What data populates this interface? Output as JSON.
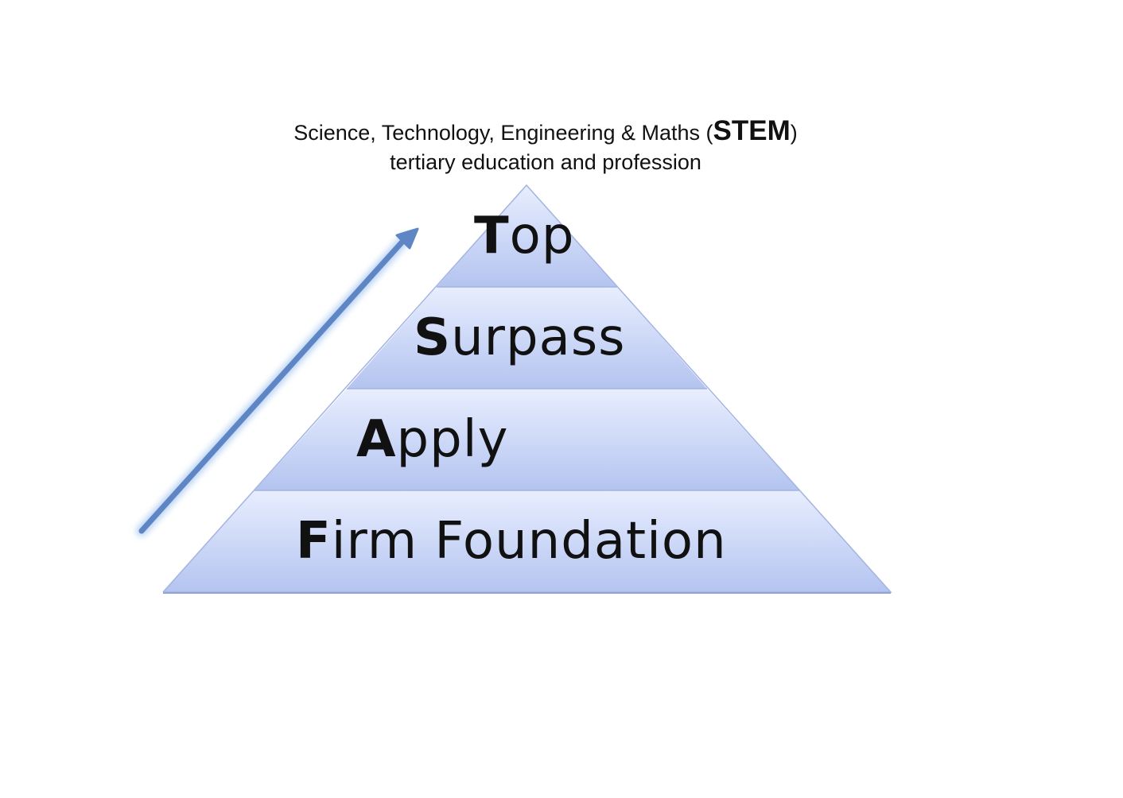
{
  "heading": {
    "line1_pre": "Science, Technology, Engineering & Maths (",
    "line1_bold": "STEM",
    "line1_post": ")",
    "line2": "tertiary education and profession"
  },
  "tiers": [
    {
      "initial": "T",
      "rest": "op"
    },
    {
      "initial": "S",
      "rest": "urpass"
    },
    {
      "initial": "A",
      "rest": "pply"
    },
    {
      "initial": "F",
      "rest": "irm Foundation"
    }
  ],
  "colors": {
    "tier_top": "#e8eeff",
    "tier_bottom": "#b4c4f0",
    "tier_edge": "#8fa3d8",
    "arrow": "#5f86c4",
    "arrow_glow": "#bcd4f4"
  },
  "icons": {
    "arrow": "arrow-up-right-icon"
  }
}
